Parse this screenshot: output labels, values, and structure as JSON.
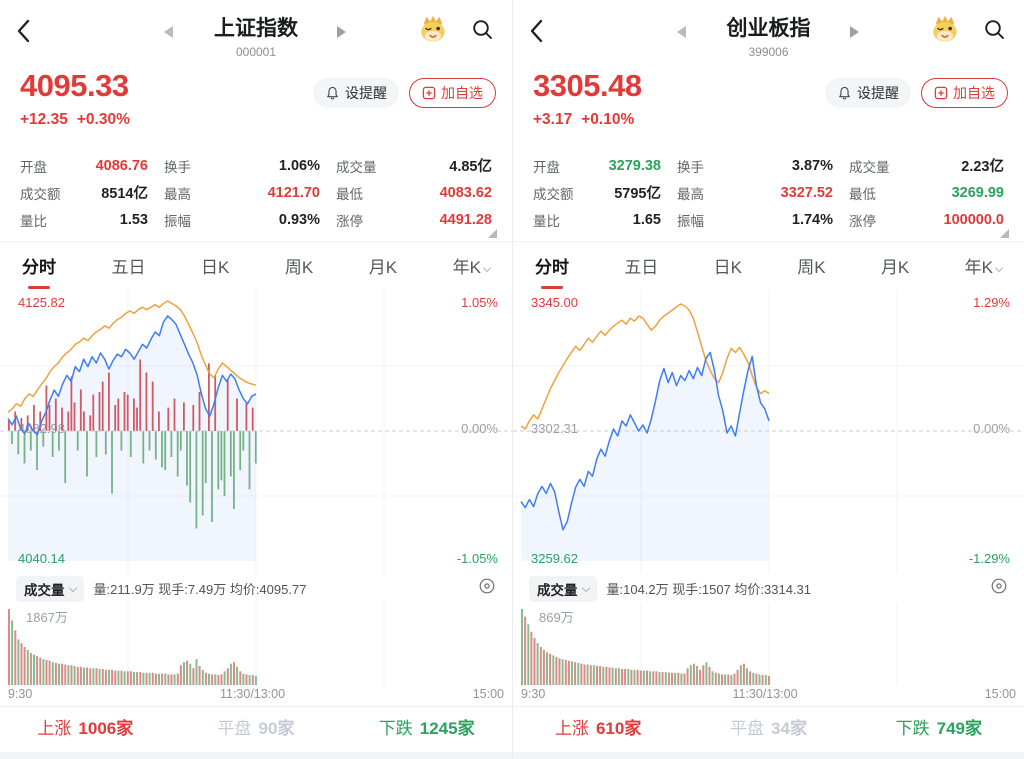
{
  "colors": {
    "up": "#e23a38",
    "down": "#2ca25f",
    "flat": "#c5cbd5",
    "price_line": "#3f7df5",
    "avg_line": "#f0a23e",
    "fill": "rgba(63,125,245,0.08)",
    "tick_up": "#cf5a64",
    "tick_down": "#76b286",
    "vol_up": "#db8b85",
    "vol_down": "#85bd90"
  },
  "panels": [
    {
      "nav": {
        "title": "上证指数",
        "code": "000001"
      },
      "quote": {
        "price": "4095.33",
        "change": "+12.35",
        "change_pct": "+0.30%"
      },
      "actions": {
        "alert": "设提醒",
        "watch": "加自选"
      },
      "stats": [
        {
          "label": "开盘",
          "value": "4086.76",
          "tone": "up"
        },
        {
          "label": "换手",
          "value": "1.06%",
          "tone": "neutral"
        },
        {
          "label": "成交量",
          "value": "4.85亿",
          "tone": "neutral"
        },
        {
          "label": "成交额",
          "value": "8514亿",
          "tone": "neutral"
        },
        {
          "label": "最高",
          "value": "4121.70",
          "tone": "up"
        },
        {
          "label": "最低",
          "value": "4083.62",
          "tone": "up"
        },
        {
          "label": "量比",
          "value": "1.53",
          "tone": "neutral"
        },
        {
          "label": "振幅",
          "value": "0.93%",
          "tone": "neutral"
        },
        {
          "label": "涨停",
          "value": "4491.28",
          "tone": "up"
        }
      ],
      "tabs": [
        "分时",
        "五日",
        "日K",
        "周K",
        "月K",
        "年K"
      ],
      "vol": {
        "selector": "成交量",
        "info": "量:211.9万 现手:7.49万 均价:4095.77"
      },
      "breadth": {
        "up_label": "上涨",
        "up_value": "1006家",
        "flat_label": "平盘",
        "flat_value": "90家",
        "down_label": "下跌",
        "down_value": "1245家"
      }
    },
    {
      "nav": {
        "title": "创业板指",
        "code": "399006"
      },
      "quote": {
        "price": "3305.48",
        "change": "+3.17",
        "change_pct": "+0.10%"
      },
      "actions": {
        "alert": "设提醒",
        "watch": "加自选"
      },
      "stats": [
        {
          "label": "开盘",
          "value": "3279.38",
          "tone": "down"
        },
        {
          "label": "换手",
          "value": "3.87%",
          "tone": "neutral"
        },
        {
          "label": "成交量",
          "value": "2.23亿",
          "tone": "neutral"
        },
        {
          "label": "成交额",
          "value": "5795亿",
          "tone": "neutral"
        },
        {
          "label": "最高",
          "value": "3327.52",
          "tone": "up"
        },
        {
          "label": "最低",
          "value": "3269.99",
          "tone": "down"
        },
        {
          "label": "量比",
          "value": "1.65",
          "tone": "neutral"
        },
        {
          "label": "振幅",
          "value": "1.74%",
          "tone": "neutral"
        },
        {
          "label": "涨停",
          "value": "100000.0",
          "tone": "up"
        }
      ],
      "tabs": [
        "分时",
        "五日",
        "日K",
        "周K",
        "月K",
        "年K"
      ],
      "vol": {
        "selector": "成交量",
        "info": "量:104.2万 现手:1507 均价:3314.31"
      },
      "breadth": {
        "up_label": "上涨",
        "up_value": "610家",
        "flat_label": "平盘",
        "flat_value": "34家",
        "down_label": "下跌",
        "down_value": "749家"
      }
    }
  ],
  "chart_data": [
    {
      "type": "line",
      "title": "上证指数 分时",
      "ylim_pct": 1.05,
      "prev_close": 4082.98,
      "labels": {
        "high": "4125.82",
        "mid": "4082.98",
        "low": "4040.14",
        "pct_high": "1.05%",
        "pct_zero": "0.00%",
        "pct_low": "-1.05%"
      },
      "x_labels": [
        "9:30",
        "11:30/13:00",
        "15:00"
      ],
      "session_fraction": 0.5,
      "series": [
        {
          "name": "price_pct",
          "values": [
            0.1,
            0.05,
            0.12,
            0.02,
            -0.02,
            0.06,
            0.0,
            -0.03,
            0.08,
            0.15,
            0.25,
            0.33,
            0.28,
            0.38,
            0.45,
            0.4,
            0.52,
            0.48,
            0.58,
            0.52,
            0.6,
            0.55,
            0.63,
            0.58,
            0.5,
            0.57,
            0.62,
            0.6,
            0.66,
            0.63,
            0.58,
            0.64,
            0.7,
            0.67,
            0.74,
            0.8,
            0.77,
            0.88,
            0.93,
            0.9,
            0.86,
            0.78,
            0.7,
            0.62,
            0.55,
            0.45,
            0.3,
            0.18,
            0.12,
            0.22,
            0.35,
            0.45,
            0.4,
            0.46,
            0.42,
            0.33,
            0.26,
            0.22,
            0.28,
            0.3
          ]
        },
        {
          "name": "avg_pct",
          "values": [
            0.15,
            0.18,
            0.22,
            0.2,
            0.26,
            0.3,
            0.28,
            0.33,
            0.38,
            0.42,
            0.48,
            0.52,
            0.55,
            0.6,
            0.63,
            0.66,
            0.7,
            0.72,
            0.75,
            0.73,
            0.77,
            0.8,
            0.82,
            0.85,
            0.83,
            0.87,
            0.9,
            0.92,
            0.95,
            0.97,
            0.95,
            0.98,
            1.0,
            0.98,
            1.0,
            1.02,
            1.0,
            1.03,
            1.05,
            1.03,
            1.01,
            0.98,
            0.93,
            0.86,
            0.79,
            0.71,
            0.61,
            0.53,
            0.46,
            0.43,
            0.5,
            0.55,
            0.52,
            0.49,
            0.46,
            0.43,
            0.41,
            0.39,
            0.38,
            0.37
          ]
        }
      ],
      "ticks": [
        0.08,
        -0.1,
        0.15,
        -0.18,
        0.1,
        -0.25,
        0.12,
        -0.15,
        0.2,
        -0.3,
        0.15,
        -0.12,
        0.35,
        0.2,
        -0.2,
        0.25,
        -0.15,
        0.18,
        -0.4,
        0.15,
        0.42,
        0.22,
        -0.15,
        0.32,
        0.15,
        -0.35,
        0.12,
        0.28,
        -0.2,
        0.3,
        0.38,
        -0.18,
        0.45,
        -0.48,
        0.2,
        0.25,
        -0.15,
        0.3,
        0.28,
        -0.2,
        0.25,
        0.18,
        0.55,
        -0.25,
        0.45,
        -0.15,
        0.38,
        -0.22,
        0.15,
        -0.28,
        -0.3,
        0.18,
        -0.2,
        0.25,
        -0.35,
        -0.15,
        0.22,
        -0.42,
        -0.55,
        0.2,
        -0.75,
        0.3,
        -0.65,
        -0.4,
        0.52,
        -0.7,
        0.43,
        -0.45,
        -0.38,
        -0.5,
        0.4,
        -0.35,
        -0.6,
        0.25,
        -0.3,
        -0.15,
        0.22,
        -0.45,
        0.18,
        -0.25
      ],
      "volume": {
        "max_label": "1867万",
        "values": [
          1.0,
          -0.85,
          0.72,
          -0.6,
          0.55,
          0.5,
          -0.46,
          0.42,
          -0.4,
          0.38,
          0.36,
          -0.34,
          0.33,
          0.32,
          -0.3,
          0.29,
          -0.28,
          0.28,
          0.27,
          -0.26,
          0.26,
          -0.25,
          0.24,
          0.24,
          -0.23,
          0.23,
          0.22,
          -0.22,
          0.22,
          -0.21,
          0.21,
          0.2,
          -0.2,
          0.2,
          0.19,
          -0.19,
          0.19,
          -0.18,
          0.18,
          0.18,
          -0.17,
          0.17,
          0.17,
          -0.16,
          0.16,
          -0.16,
          0.16,
          0.15,
          -0.15,
          0.15,
          -0.15,
          0.14,
          0.14,
          -0.14,
          0.15,
          0.26,
          -0.3,
          0.32,
          -0.28,
          0.22,
          -0.34,
          0.25,
          -0.2,
          0.16,
          -0.15,
          0.14,
          -0.14,
          0.13,
          0.14,
          -0.18,
          0.22,
          -0.28,
          0.3,
          -0.24,
          0.18,
          -0.15,
          0.14,
          -0.13,
          0.13,
          -0.12
        ]
      }
    },
    {
      "type": "line",
      "title": "创业板指 分时",
      "ylim_pct": 1.29,
      "prev_close": 3302.31,
      "labels": {
        "high": "3345.00",
        "mid": "3302.31",
        "low": "3259.62",
        "pct_high": "1.29%",
        "pct_zero": "0.00%",
        "pct_low": "-1.29%"
      },
      "x_labels": [
        "9:30",
        "11:30/13:00",
        "15:00"
      ],
      "session_fraction": 0.5,
      "series": [
        {
          "name": "price_pct",
          "values": [
            -0.7,
            -0.76,
            -0.68,
            -0.75,
            -0.62,
            -0.55,
            -0.62,
            -0.52,
            -0.6,
            -0.8,
            -0.98,
            -0.9,
            -0.72,
            -0.56,
            -0.48,
            -0.55,
            -0.4,
            -0.45,
            -0.28,
            -0.18,
            -0.25,
            -0.1,
            0.02,
            -0.05,
            0.1,
            0.05,
            0.16,
            0.08,
            0.0,
            0.06,
            -0.02,
            0.12,
            0.3,
            0.5,
            0.62,
            0.48,
            0.58,
            0.45,
            0.55,
            0.5,
            0.6,
            0.52,
            0.63,
            0.55,
            0.72,
            0.78,
            0.6,
            0.35,
            0.2,
            -0.02,
            0.05,
            -0.05,
            0.18,
            0.4,
            0.6,
            0.74,
            0.45,
            0.28,
            0.22,
            0.1
          ]
        },
        {
          "name": "avg_pct",
          "values": [
            0.05,
            0.02,
            0.1,
            0.16,
            0.12,
            0.22,
            0.32,
            0.42,
            0.5,
            0.58,
            0.65,
            0.72,
            0.78,
            0.84,
            0.8,
            0.86,
            0.92,
            0.88,
            0.94,
            0.99,
            0.95,
            1.0,
            1.04,
            1.07,
            1.1,
            1.06,
            1.12,
            1.09,
            1.14,
            1.12,
            1.06,
            1.0,
            1.04,
            1.1,
            1.14,
            1.17,
            1.2,
            1.23,
            1.26,
            1.24,
            1.2,
            1.12,
            0.98,
            0.84,
            0.7,
            0.6,
            0.52,
            0.48,
            0.58,
            0.72,
            0.82,
            0.78,
            0.83,
            0.76,
            0.68,
            0.55,
            0.44,
            0.37,
            0.4,
            0.37
          ]
        }
      ],
      "volume": {
        "max_label": "869万",
        "values": [
          -1.0,
          0.9,
          -0.8,
          0.7,
          0.62,
          -0.55,
          0.5,
          0.46,
          -0.43,
          0.41,
          -0.39,
          0.37,
          0.35,
          -0.34,
          0.33,
          0.32,
          -0.31,
          0.3,
          -0.29,
          0.28,
          0.27,
          -0.27,
          0.26,
          -0.26,
          0.25,
          0.25,
          -0.24,
          0.24,
          0.23,
          -0.23,
          0.22,
          -0.22,
          0.21,
          0.21,
          -0.21,
          0.2,
          -0.2,
          0.2,
          0.19,
          -0.19,
          0.19,
          -0.18,
          0.18,
          0.18,
          -0.17,
          0.17,
          -0.17,
          0.16,
          0.16,
          -0.16,
          0.16,
          -0.15,
          0.15,
          0.22,
          -0.26,
          0.28,
          -0.25,
          0.2,
          0.26,
          -0.3,
          0.24,
          -0.18,
          0.16,
          -0.15,
          0.14,
          -0.14,
          0.14,
          -0.13,
          0.15,
          0.2,
          -0.26,
          0.28,
          -0.22,
          0.18,
          -0.16,
          0.15,
          -0.14,
          0.13,
          -0.13,
          0.12
        ]
      }
    }
  ]
}
